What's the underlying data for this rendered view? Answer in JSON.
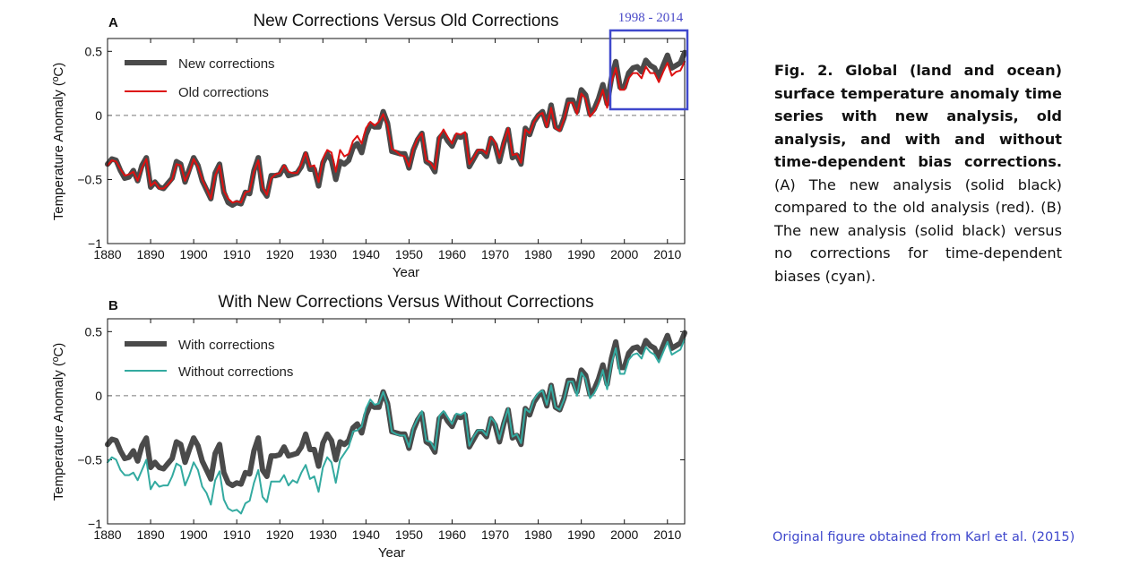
{
  "caption": {
    "bold": "Fig. 2. Global (land and ocean) surface temperature anomaly time series with new analysis, old analysis, and with and without time-dependent bias corrections.",
    "normal": "(A) The new analysis (solid black) compared to the old analysis (red). (B) The new analysis (solid black) versus no corrections for time-dependent biases (cyan)."
  },
  "attribution": "Original figure obtained from Karl et al. (2015)",
  "highlight": {
    "label": "1998 - 2014",
    "color": "#3f48cc",
    "x_range": [
      1998,
      2014
    ]
  },
  "colors": {
    "new": "#4a4a4a",
    "old": "#dd1111",
    "without": "#33aaa0",
    "zero_line": "#777777"
  },
  "chart_data": [
    {
      "type": "line",
      "panel_letter": "A",
      "title": "New Corrections Versus Old Corrections",
      "xlabel": "Year",
      "ylabel": "Temperature Anomaly (ºC)",
      "xlim": [
        1880,
        2014
      ],
      "ylim": [
        -1,
        0.6
      ],
      "xticks": [
        "1880",
        "1890",
        "1900",
        "1910",
        "1920",
        "1930",
        "1940",
        "1950",
        "1960",
        "1970",
        "1980",
        "1990",
        "2000",
        "2010"
      ],
      "yticks": [
        "−1",
        "−0.5",
        "0",
        "0.5"
      ],
      "ytick_values": [
        -1,
        -0.5,
        0,
        0.5
      ],
      "grid": false,
      "reference_line": 0,
      "legend_position": "top-left",
      "x": [
        1880,
        1881,
        1882,
        1883,
        1884,
        1885,
        1886,
        1887,
        1888,
        1889,
        1890,
        1891,
        1892,
        1893,
        1894,
        1895,
        1896,
        1897,
        1898,
        1899,
        1900,
        1901,
        1902,
        1903,
        1904,
        1905,
        1906,
        1907,
        1908,
        1909,
        1910,
        1911,
        1912,
        1913,
        1914,
        1915,
        1916,
        1917,
        1918,
        1919,
        1920,
        1921,
        1922,
        1923,
        1924,
        1925,
        1926,
        1927,
        1928,
        1929,
        1930,
        1931,
        1932,
        1933,
        1934,
        1935,
        1936,
        1937,
        1938,
        1939,
        1940,
        1941,
        1942,
        1943,
        1944,
        1945,
        1946,
        1947,
        1948,
        1949,
        1950,
        1951,
        1952,
        1953,
        1954,
        1955,
        1956,
        1957,
        1958,
        1959,
        1960,
        1961,
        1962,
        1963,
        1964,
        1965,
        1966,
        1967,
        1968,
        1969,
        1970,
        1971,
        1972,
        1973,
        1974,
        1975,
        1976,
        1977,
        1978,
        1979,
        1980,
        1981,
        1982,
        1983,
        1984,
        1985,
        1986,
        1987,
        1988,
        1989,
        1990,
        1991,
        1992,
        1993,
        1994,
        1995,
        1996,
        1997,
        1998,
        1999,
        2000,
        2001,
        2002,
        2003,
        2004,
        2005,
        2006,
        2007,
        2008,
        2009,
        2010,
        2011,
        2012,
        2013,
        2014
      ],
      "series": [
        {
          "name": "New corrections",
          "values": [
            -0.38,
            -0.34,
            -0.35,
            -0.43,
            -0.49,
            -0.48,
            -0.43,
            -0.51,
            -0.39,
            -0.33,
            -0.56,
            -0.52,
            -0.56,
            -0.57,
            -0.53,
            -0.49,
            -0.36,
            -0.38,
            -0.52,
            -0.42,
            -0.33,
            -0.39,
            -0.51,
            -0.58,
            -0.65,
            -0.45,
            -0.38,
            -0.6,
            -0.68,
            -0.7,
            -0.68,
            -0.69,
            -0.6,
            -0.61,
            -0.43,
            -0.33,
            -0.58,
            -0.63,
            -0.47,
            -0.47,
            -0.46,
            -0.4,
            -0.47,
            -0.46,
            -0.45,
            -0.4,
            -0.3,
            -0.42,
            -0.42,
            -0.55,
            -0.37,
            -0.3,
            -0.35,
            -0.5,
            -0.36,
            -0.38,
            -0.35,
            -0.25,
            -0.22,
            -0.29,
            -0.15,
            -0.07,
            -0.09,
            -0.09,
            0.03,
            -0.06,
            -0.28,
            -0.29,
            -0.3,
            -0.3,
            -0.41,
            -0.27,
            -0.19,
            -0.14,
            -0.36,
            -0.38,
            -0.44,
            -0.18,
            -0.14,
            -0.2,
            -0.24,
            -0.16,
            -0.17,
            -0.15,
            -0.4,
            -0.34,
            -0.28,
            -0.28,
            -0.32,
            -0.18,
            -0.23,
            -0.36,
            -0.22,
            -0.11,
            -0.33,
            -0.31,
            -0.38,
            -0.1,
            -0.15,
            -0.05,
            0.0,
            0.03,
            -0.08,
            0.08,
            -0.09,
            -0.11,
            -0.02,
            0.12,
            0.12,
            0.03,
            0.2,
            0.16,
            0.01,
            0.05,
            0.13,
            0.24,
            0.09,
            0.29,
            0.42,
            0.22,
            0.22,
            0.33,
            0.37,
            0.38,
            0.34,
            0.43,
            0.39,
            0.37,
            0.3,
            0.39,
            0.47,
            0.37,
            0.39,
            0.41,
            0.49
          ]
        },
        {
          "name": "Old corrections",
          "values": [
            -0.39,
            -0.35,
            -0.36,
            -0.42,
            -0.47,
            -0.46,
            -0.44,
            -0.51,
            -0.41,
            -0.34,
            -0.55,
            -0.52,
            -0.57,
            -0.57,
            -0.54,
            -0.5,
            -0.38,
            -0.39,
            -0.51,
            -0.44,
            -0.34,
            -0.4,
            -0.5,
            -0.57,
            -0.65,
            -0.47,
            -0.39,
            -0.59,
            -0.65,
            -0.68,
            -0.67,
            -0.68,
            -0.6,
            -0.59,
            -0.44,
            -0.35,
            -0.56,
            -0.62,
            -0.49,
            -0.46,
            -0.45,
            -0.39,
            -0.44,
            -0.45,
            -0.45,
            -0.38,
            -0.29,
            -0.4,
            -0.39,
            -0.52,
            -0.34,
            -0.27,
            -0.29,
            -0.44,
            -0.27,
            -0.32,
            -0.3,
            -0.2,
            -0.16,
            -0.22,
            -0.1,
            -0.05,
            -0.08,
            -0.05,
            0.01,
            -0.08,
            -0.26,
            -0.28,
            -0.31,
            -0.32,
            -0.4,
            -0.26,
            -0.18,
            -0.14,
            -0.35,
            -0.37,
            -0.42,
            -0.17,
            -0.11,
            -0.17,
            -0.22,
            -0.14,
            -0.15,
            -0.13,
            -0.38,
            -0.33,
            -0.27,
            -0.27,
            -0.3,
            -0.17,
            -0.21,
            -0.33,
            -0.21,
            -0.1,
            -0.31,
            -0.3,
            -0.37,
            -0.11,
            -0.14,
            -0.05,
            0.0,
            0.02,
            -0.09,
            0.06,
            -0.1,
            -0.12,
            -0.03,
            0.1,
            0.1,
            0.01,
            0.17,
            0.13,
            -0.01,
            0.03,
            0.1,
            0.2,
            0.06,
            0.26,
            0.37,
            0.2,
            0.2,
            0.29,
            0.33,
            0.33,
            0.29,
            0.38,
            0.33,
            0.33,
            0.26,
            0.34,
            0.41,
            0.31,
            0.34,
            0.35,
            0.42
          ]
        }
      ],
      "legend": [
        {
          "label": "New corrections"
        },
        {
          "label": "Old corrections"
        }
      ]
    },
    {
      "type": "line",
      "panel_letter": "B",
      "title": "With New Corrections Versus Without Corrections",
      "xlabel": "Year",
      "ylabel": "Temperature Anomaly (ºC)",
      "xlim": [
        1880,
        2014
      ],
      "ylim": [
        -1,
        0.6
      ],
      "xticks": [
        "1880",
        "1890",
        "1900",
        "1910",
        "1920",
        "1930",
        "1940",
        "1950",
        "1960",
        "1970",
        "1980",
        "1990",
        "2000",
        "2010"
      ],
      "yticks": [
        "−1",
        "−0.5",
        "0",
        "0.5"
      ],
      "ytick_values": [
        -1,
        -0.5,
        0,
        0.5
      ],
      "grid": false,
      "reference_line": 0,
      "legend_position": "top-left",
      "x": [
        1880,
        1881,
        1882,
        1883,
        1884,
        1885,
        1886,
        1887,
        1888,
        1889,
        1890,
        1891,
        1892,
        1893,
        1894,
        1895,
        1896,
        1897,
        1898,
        1899,
        1900,
        1901,
        1902,
        1903,
        1904,
        1905,
        1906,
        1907,
        1908,
        1909,
        1910,
        1911,
        1912,
        1913,
        1914,
        1915,
        1916,
        1917,
        1918,
        1919,
        1920,
        1921,
        1922,
        1923,
        1924,
        1925,
        1926,
        1927,
        1928,
        1929,
        1930,
        1931,
        1932,
        1933,
        1934,
        1935,
        1936,
        1937,
        1938,
        1939,
        1940,
        1941,
        1942,
        1943,
        1944,
        1945,
        1946,
        1947,
        1948,
        1949,
        1950,
        1951,
        1952,
        1953,
        1954,
        1955,
        1956,
        1957,
        1958,
        1959,
        1960,
        1961,
        1962,
        1963,
        1964,
        1965,
        1966,
        1967,
        1968,
        1969,
        1970,
        1971,
        1972,
        1973,
        1974,
        1975,
        1976,
        1977,
        1978,
        1979,
        1980,
        1981,
        1982,
        1983,
        1984,
        1985,
        1986,
        1987,
        1988,
        1989,
        1990,
        1991,
        1992,
        1993,
        1994,
        1995,
        1996,
        1997,
        1998,
        1999,
        2000,
        2001,
        2002,
        2003,
        2004,
        2005,
        2006,
        2007,
        2008,
        2009,
        2010,
        2011,
        2012,
        2013,
        2014
      ],
      "series": [
        {
          "name": "With corrections",
          "values": [
            -0.38,
            -0.34,
            -0.35,
            -0.43,
            -0.49,
            -0.48,
            -0.43,
            -0.51,
            -0.39,
            -0.33,
            -0.56,
            -0.52,
            -0.56,
            -0.57,
            -0.53,
            -0.49,
            -0.36,
            -0.38,
            -0.52,
            -0.42,
            -0.33,
            -0.39,
            -0.51,
            -0.58,
            -0.65,
            -0.45,
            -0.38,
            -0.6,
            -0.68,
            -0.7,
            -0.68,
            -0.69,
            -0.6,
            -0.61,
            -0.43,
            -0.33,
            -0.58,
            -0.63,
            -0.47,
            -0.47,
            -0.46,
            -0.4,
            -0.47,
            -0.46,
            -0.45,
            -0.4,
            -0.3,
            -0.42,
            -0.42,
            -0.55,
            -0.37,
            -0.3,
            -0.35,
            -0.5,
            -0.36,
            -0.38,
            -0.35,
            -0.25,
            -0.22,
            -0.29,
            -0.15,
            -0.07,
            -0.09,
            -0.09,
            0.03,
            -0.06,
            -0.28,
            -0.29,
            -0.3,
            -0.3,
            -0.41,
            -0.27,
            -0.19,
            -0.14,
            -0.36,
            -0.38,
            -0.44,
            -0.18,
            -0.14,
            -0.2,
            -0.24,
            -0.16,
            -0.17,
            -0.15,
            -0.4,
            -0.34,
            -0.28,
            -0.28,
            -0.32,
            -0.18,
            -0.23,
            -0.36,
            -0.22,
            -0.11,
            -0.33,
            -0.31,
            -0.38,
            -0.1,
            -0.15,
            -0.05,
            0.0,
            0.03,
            -0.08,
            0.08,
            -0.09,
            -0.11,
            -0.02,
            0.12,
            0.12,
            0.03,
            0.2,
            0.16,
            0.01,
            0.05,
            0.13,
            0.24,
            0.09,
            0.29,
            0.42,
            0.22,
            0.22,
            0.33,
            0.37,
            0.38,
            0.34,
            0.43,
            0.39,
            0.37,
            0.3,
            0.39,
            0.47,
            0.37,
            0.39,
            0.41,
            0.49
          ]
        },
        {
          "name": "Without corrections",
          "values": [
            -0.52,
            -0.48,
            -0.5,
            -0.58,
            -0.62,
            -0.62,
            -0.6,
            -0.66,
            -0.58,
            -0.5,
            -0.73,
            -0.67,
            -0.71,
            -0.7,
            -0.7,
            -0.63,
            -0.53,
            -0.55,
            -0.7,
            -0.62,
            -0.52,
            -0.58,
            -0.71,
            -0.76,
            -0.85,
            -0.66,
            -0.59,
            -0.81,
            -0.88,
            -0.9,
            -0.89,
            -0.92,
            -0.84,
            -0.82,
            -0.68,
            -0.58,
            -0.79,
            -0.83,
            -0.67,
            -0.67,
            -0.67,
            -0.62,
            -0.7,
            -0.66,
            -0.68,
            -0.6,
            -0.54,
            -0.65,
            -0.63,
            -0.75,
            -0.56,
            -0.48,
            -0.52,
            -0.68,
            -0.5,
            -0.45,
            -0.4,
            -0.28,
            -0.27,
            -0.24,
            -0.1,
            -0.03,
            -0.07,
            -0.06,
            0.03,
            -0.07,
            -0.28,
            -0.3,
            -0.31,
            -0.31,
            -0.4,
            -0.25,
            -0.18,
            -0.12,
            -0.35,
            -0.36,
            -0.42,
            -0.16,
            -0.12,
            -0.17,
            -0.22,
            -0.14,
            -0.15,
            -0.13,
            -0.39,
            -0.32,
            -0.27,
            -0.27,
            -0.31,
            -0.17,
            -0.21,
            -0.34,
            -0.21,
            -0.1,
            -0.32,
            -0.3,
            -0.37,
            -0.1,
            -0.13,
            -0.03,
            0.02,
            0.04,
            -0.07,
            0.08,
            -0.09,
            -0.11,
            -0.03,
            0.11,
            0.11,
            0.0,
            0.18,
            0.13,
            -0.02,
            0.02,
            0.09,
            0.2,
            0.05,
            0.25,
            0.37,
            0.17,
            0.17,
            0.28,
            0.32,
            0.33,
            0.29,
            0.38,
            0.34,
            0.32,
            0.26,
            0.34,
            0.42,
            0.32,
            0.34,
            0.36,
            0.44
          ]
        }
      ],
      "legend": [
        {
          "label": "With corrections"
        },
        {
          "label": "Without corrections"
        }
      ]
    }
  ]
}
